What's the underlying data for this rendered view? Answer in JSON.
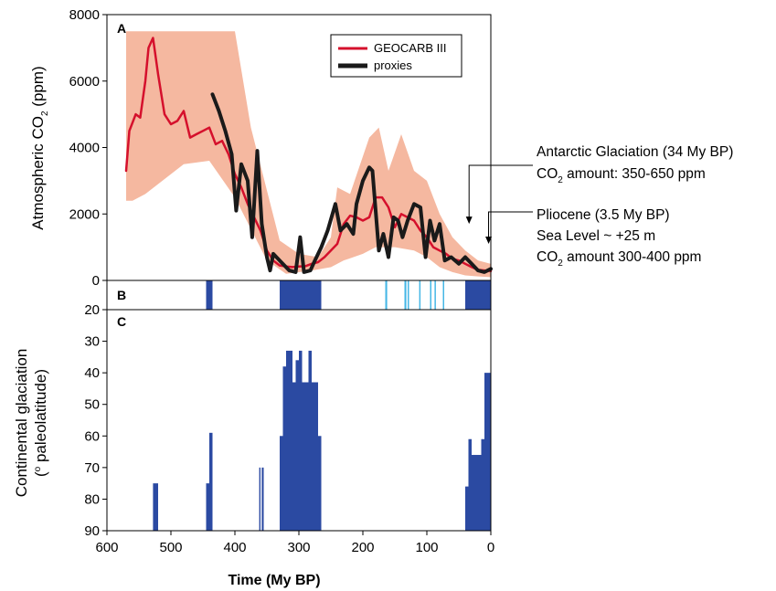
{
  "chart_data": {
    "type": "line",
    "xlabel": "Time (My BP)",
    "x_ticks": [
      "600",
      "500",
      "400",
      "300",
      "200",
      "100",
      "0"
    ],
    "xlim": [
      600,
      0
    ],
    "panelA": {
      "letter": "A",
      "ylabel_main": "Atmospheric CO",
      "ylabel_sub": "2",
      "ylabel_unit": " (ppm)",
      "ylim": [
        0,
        8000
      ],
      "y_ticks": [
        "8000",
        "6000",
        "4000",
        "2000",
        "0"
      ],
      "legend_placement": "top-right",
      "band_color": "#f5b8a0",
      "band_upper": [
        [
          570,
          7500
        ],
        [
          555,
          7500
        ],
        [
          555,
          7500
        ],
        [
          400,
          7500
        ],
        [
          375,
          4600
        ],
        [
          330,
          1200
        ],
        [
          300,
          800
        ],
        [
          270,
          700
        ],
        [
          250,
          1300
        ],
        [
          240,
          2800
        ],
        [
          220,
          2600
        ],
        [
          190,
          4300
        ],
        [
          175,
          4600
        ],
        [
          160,
          3300
        ],
        [
          140,
          4400
        ],
        [
          120,
          3300
        ],
        [
          100,
          3000
        ],
        [
          80,
          2000
        ],
        [
          60,
          1300
        ],
        [
          40,
          900
        ],
        [
          20,
          600
        ],
        [
          0,
          500
        ]
      ],
      "band_lower": [
        [
          570,
          2400
        ],
        [
          560,
          2400
        ],
        [
          540,
          2600
        ],
        [
          480,
          3500
        ],
        [
          440,
          3600
        ],
        [
          400,
          2500
        ],
        [
          350,
          600
        ],
        [
          320,
          200
        ],
        [
          280,
          300
        ],
        [
          250,
          400
        ],
        [
          230,
          600
        ],
        [
          200,
          800
        ],
        [
          180,
          1000
        ],
        [
          150,
          1000
        ],
        [
          120,
          900
        ],
        [
          100,
          700
        ],
        [
          80,
          400
        ],
        [
          60,
          250
        ],
        [
          40,
          150
        ],
        [
          20,
          120
        ],
        [
          0,
          100
        ]
      ],
      "series": [
        {
          "name": "GEOCARB III",
          "color": "#d5102c",
          "points": [
            [
              570,
              3300
            ],
            [
              565,
              4500
            ],
            [
              555,
              5000
            ],
            [
              548,
              4900
            ],
            [
              540,
              6000
            ],
            [
              535,
              7000
            ],
            [
              528,
              7300
            ],
            [
              520,
              6200
            ],
            [
              510,
              5000
            ],
            [
              500,
              4700
            ],
            [
              490,
              4800
            ],
            [
              480,
              5100
            ],
            [
              470,
              4300
            ],
            [
              460,
              4400
            ],
            [
              450,
              4500
            ],
            [
              440,
              4600
            ],
            [
              430,
              4100
            ],
            [
              420,
              4200
            ],
            [
              410,
              3800
            ],
            [
              400,
              3200
            ],
            [
              390,
              2800
            ],
            [
              380,
              2300
            ],
            [
              370,
              1900
            ],
            [
              360,
              1500
            ],
            [
              350,
              900
            ],
            [
              340,
              600
            ],
            [
              330,
              450
            ],
            [
              320,
              420
            ],
            [
              310,
              400
            ],
            [
              300,
              420
            ],
            [
              290,
              430
            ],
            [
              280,
              500
            ],
            [
              270,
              550
            ],
            [
              260,
              700
            ],
            [
              250,
              900
            ],
            [
              240,
              1100
            ],
            [
              230,
              1700
            ],
            [
              220,
              1950
            ],
            [
              210,
              1900
            ],
            [
              200,
              1800
            ],
            [
              190,
              1900
            ],
            [
              180,
              2500
            ],
            [
              170,
              2500
            ],
            [
              160,
              2200
            ],
            [
              150,
              1600
            ],
            [
              140,
              2000
            ],
            [
              130,
              1900
            ],
            [
              120,
              1800
            ],
            [
              110,
              1500
            ],
            [
              100,
              1300
            ],
            [
              90,
              1000
            ],
            [
              80,
              900
            ],
            [
              70,
              800
            ],
            [
              60,
              650
            ],
            [
              50,
              600
            ],
            [
              40,
              500
            ],
            [
              30,
              400
            ],
            [
              20,
              320
            ],
            [
              10,
              300
            ],
            [
              0,
              280
            ]
          ]
        },
        {
          "name": "proxies",
          "color": "#1a1a1a",
          "points": [
            [
              435,
              5600
            ],
            [
              425,
              5100
            ],
            [
              415,
              4500
            ],
            [
              405,
              3800
            ],
            [
              398,
              2100
            ],
            [
              390,
              3500
            ],
            [
              380,
              3000
            ],
            [
              373,
              1300
            ],
            [
              365,
              3900
            ],
            [
              358,
              1700
            ],
            [
              350,
              700
            ],
            [
              345,
              300
            ],
            [
              340,
              800
            ],
            [
              330,
              600
            ],
            [
              315,
              300
            ],
            [
              305,
              250
            ],
            [
              298,
              1300
            ],
            [
              292,
              250
            ],
            [
              282,
              300
            ],
            [
              275,
              600
            ],
            [
              265,
              1000
            ],
            [
              255,
              1500
            ],
            [
              243,
              2300
            ],
            [
              235,
              1500
            ],
            [
              225,
              1700
            ],
            [
              215,
              1400
            ],
            [
              210,
              2300
            ],
            [
              200,
              3000
            ],
            [
              190,
              3400
            ],
            [
              185,
              3300
            ],
            [
              175,
              900
            ],
            [
              168,
              1400
            ],
            [
              160,
              700
            ],
            [
              152,
              1900
            ],
            [
              145,
              1800
            ],
            [
              138,
              1300
            ],
            [
              130,
              1800
            ],
            [
              120,
              2300
            ],
            [
              110,
              2200
            ],
            [
              102,
              700
            ],
            [
              95,
              1800
            ],
            [
              88,
              1200
            ],
            [
              80,
              1700
            ],
            [
              72,
              600
            ],
            [
              62,
              700
            ],
            [
              50,
              500
            ],
            [
              40,
              700
            ],
            [
              30,
              500
            ],
            [
              20,
              300
            ],
            [
              10,
              250
            ],
            [
              0,
              350
            ]
          ]
        }
      ]
    },
    "panelB": {
      "letter": "B",
      "dark_color": "#2b4aa2",
      "light_color": "#46b7e6",
      "dark_bands": [
        [
          445,
          435
        ],
        [
          330,
          265
        ],
        [
          40,
          0
        ]
      ],
      "light_bands": [
        [
          165,
          162
        ],
        [
          135,
          132
        ],
        [
          130,
          128
        ],
        [
          112,
          110
        ],
        [
          95,
          93
        ],
        [
          88,
          86
        ],
        [
          75,
          73
        ]
      ]
    },
    "panelC": {
      "letter": "C",
      "ylabel_line1": "Continental glaciation",
      "ylabel_line2_pre": "(",
      "ylabel_line2_sup": "o",
      "ylabel_line2_post": " paleolatitude)",
      "ylim": [
        20,
        90
      ],
      "y_ticks": [
        "20",
        "30",
        "40",
        "50",
        "60",
        "70",
        "80",
        "90"
      ],
      "bar_color": "#2b4aa2",
      "bars": [
        [
          528,
          520,
          75
        ],
        [
          445,
          435,
          75
        ],
        [
          440,
          435,
          59
        ],
        [
          362,
          360,
          70
        ],
        [
          358,
          355,
          70
        ],
        [
          330,
          325,
          60
        ],
        [
          325,
          320,
          38
        ],
        [
          320,
          315,
          33
        ],
        [
          315,
          310,
          33
        ],
        [
          310,
          305,
          43
        ],
        [
          305,
          300,
          36
        ],
        [
          300,
          295,
          33
        ],
        [
          295,
          290,
          43
        ],
        [
          290,
          285,
          43
        ],
        [
          285,
          280,
          33
        ],
        [
          280,
          275,
          43
        ],
        [
          275,
          270,
          43
        ],
        [
          270,
          265,
          60
        ],
        [
          40,
          35,
          76
        ],
        [
          35,
          30,
          61
        ],
        [
          30,
          25,
          66
        ],
        [
          25,
          20,
          66
        ],
        [
          20,
          15,
          66
        ],
        [
          15,
          10,
          61
        ],
        [
          10,
          5,
          40
        ],
        [
          5,
          0,
          40
        ]
      ]
    },
    "annotations": [
      {
        "line1": "Antarctic Glaciation (34 My BP)",
        "line2_pre": "CO",
        "line2_sub": "2",
        "line2_post": " amount: 350-650 ppm",
        "x": 34,
        "y": 1700
      },
      {
        "line1": "Pliocene (3.5 My BP)",
        "line2": "Sea Level ~ +25 m",
        "line3_pre": "CO",
        "line3_sub": "2",
        "line3_post": " amount 300-400 ppm",
        "x": 3.5,
        "y": 1100
      }
    ]
  }
}
